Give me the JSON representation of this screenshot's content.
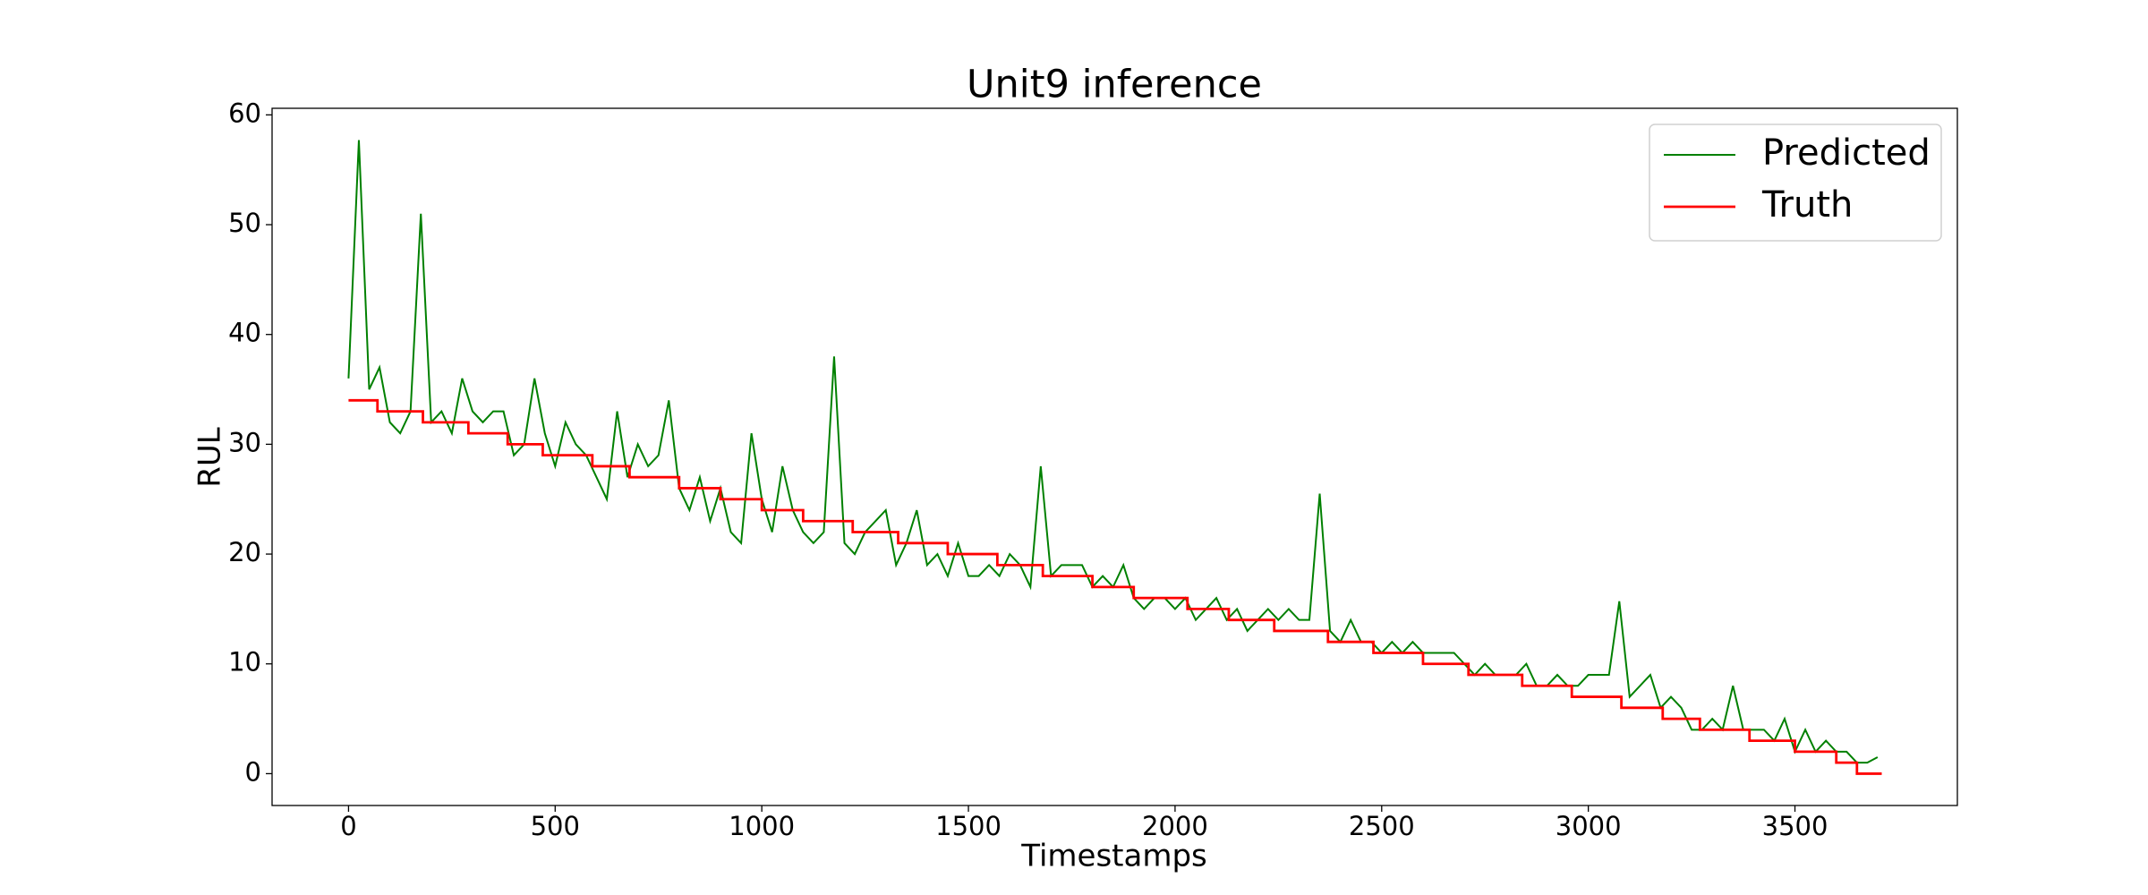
{
  "chart_data": {
    "type": "line",
    "title": "Unit9 inference",
    "x_label": "Timestamps",
    "y_label": "RUL",
    "xlim": [
      -185,
      3893
    ],
    "xticks": [
      0,
      500,
      1000,
      1500,
      2000,
      2500,
      3000,
      3500
    ],
    "ylim": [
      -2.9,
      60.6
    ],
    "yticks": [
      0,
      10,
      20,
      30,
      40,
      50,
      60
    ],
    "legend": "upper right",
    "grid": false,
    "series": [
      {
        "name": "Predicted",
        "color": "#008000",
        "x": [
          0,
          25,
          50,
          75,
          100,
          125,
          150,
          175,
          200,
          225,
          250,
          275,
          300,
          325,
          350,
          375,
          400,
          425,
          450,
          475,
          500,
          525,
          550,
          575,
          600,
          625,
          650,
          675,
          700,
          725,
          750,
          775,
          800,
          825,
          850,
          875,
          900,
          925,
          950,
          975,
          1000,
          1025,
          1050,
          1075,
          1100,
          1125,
          1150,
          1175,
          1200,
          1225,
          1250,
          1275,
          1300,
          1325,
          1350,
          1375,
          1400,
          1425,
          1450,
          1475,
          1500,
          1525,
          1550,
          1575,
          1600,
          1625,
          1650,
          1675,
          1700,
          1725,
          1750,
          1775,
          1800,
          1825,
          1850,
          1875,
          1900,
          1925,
          1950,
          1975,
          2000,
          2025,
          2050,
          2075,
          2100,
          2125,
          2150,
          2175,
          2200,
          2225,
          2250,
          2275,
          2300,
          2325,
          2350,
          2375,
          2400,
          2425,
          2450,
          2475,
          2500,
          2525,
          2550,
          2575,
          2600,
          2625,
          2650,
          2675,
          2700,
          2725,
          2750,
          2775,
          2800,
          2825,
          2850,
          2875,
          2900,
          2925,
          2950,
          2975,
          3000,
          3025,
          3050,
          3075,
          3100,
          3125,
          3150,
          3175,
          3200,
          3225,
          3250,
          3275,
          3300,
          3325,
          3350,
          3375,
          3400,
          3425,
          3450,
          3475,
          3500,
          3525,
          3550,
          3575,
          3600,
          3625,
          3650,
          3675,
          3700
        ],
        "values": [
          36,
          57.7,
          35,
          37,
          32,
          31,
          33,
          51,
          32,
          33,
          31,
          36,
          33,
          32,
          33,
          33,
          29,
          30,
          36,
          31,
          28,
          32,
          30,
          29,
          27,
          25,
          33,
          27,
          30,
          28,
          29,
          34,
          26,
          24,
          27,
          23,
          26,
          22,
          21,
          31,
          25,
          22,
          28,
          24,
          22,
          21,
          22,
          38,
          21,
          20,
          22,
          23,
          24,
          19,
          21,
          24,
          19,
          20,
          18,
          21,
          18,
          18,
          19,
          18,
          20,
          19,
          17,
          28,
          18,
          19,
          19,
          19,
          17,
          18,
          17,
          19,
          16,
          15,
          16,
          16,
          15,
          16,
          14,
          15,
          16,
          14,
          15,
          13,
          14,
          15,
          14,
          15,
          14,
          14,
          25.5,
          13,
          12,
          14,
          12,
          12,
          11,
          12,
          11,
          12,
          11,
          11,
          11,
          11,
          10,
          9,
          10,
          9,
          9,
          9,
          10,
          8,
          8,
          9,
          8,
          8,
          9,
          9,
          9,
          15.7,
          7,
          8,
          9,
          6,
          7,
          6,
          4,
          4,
          5,
          4,
          8,
          4,
          4,
          4,
          3,
          5,
          2,
          4,
          2,
          3,
          2,
          2,
          1,
          1,
          1.5
        ]
      },
      {
        "name": "Truth",
        "color": "#ff0000",
        "x": [
          0,
          70,
          70,
          180,
          180,
          290,
          290,
          385,
          385,
          470,
          470,
          590,
          590,
          680,
          680,
          800,
          800,
          900,
          900,
          1000,
          1000,
          1100,
          1100,
          1220,
          1220,
          1330,
          1330,
          1450,
          1450,
          1570,
          1570,
          1680,
          1680,
          1800,
          1800,
          1900,
          1900,
          2030,
          2030,
          2130,
          2130,
          2240,
          2240,
          2370,
          2370,
          2480,
          2480,
          2600,
          2600,
          2710,
          2710,
          2840,
          2840,
          2960,
          2960,
          3080,
          3080,
          3180,
          3180,
          3270,
          3270,
          3390,
          3390,
          3500,
          3500,
          3600,
          3600,
          3650,
          3650,
          3710
        ],
        "values": [
          34,
          34,
          33,
          33,
          32,
          32,
          31,
          31,
          30,
          30,
          29,
          29,
          28,
          28,
          27,
          27,
          26,
          26,
          25,
          25,
          24,
          24,
          23,
          23,
          22,
          22,
          21,
          21,
          20,
          20,
          19,
          19,
          18,
          18,
          17,
          17,
          16,
          16,
          15,
          15,
          14,
          14,
          13,
          13,
          12,
          12,
          11,
          11,
          10,
          10,
          9,
          9,
          8,
          8,
          7,
          7,
          6,
          6,
          5,
          5,
          4,
          4,
          3,
          3,
          2,
          2,
          1,
          1,
          0,
          0
        ]
      }
    ]
  }
}
